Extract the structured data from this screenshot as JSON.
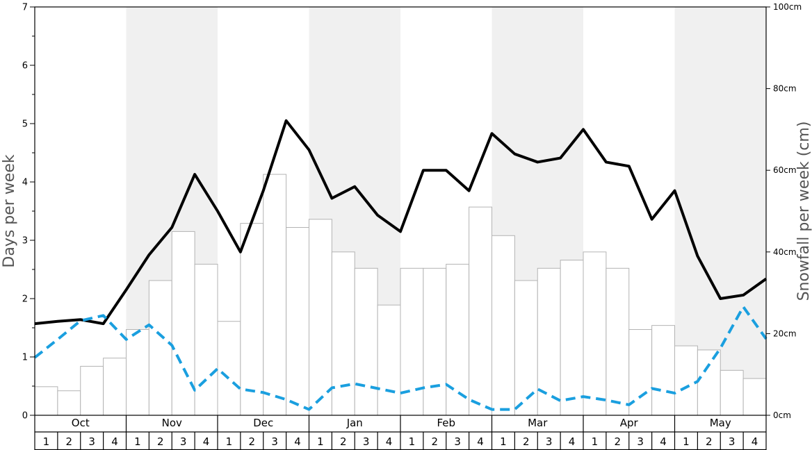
{
  "chart_data": {
    "type": "bar",
    "title": "",
    "ylabel_left": "Days per week",
    "ylabel_right": "Snowfall per week (cm)",
    "ylim_left": [
      0,
      7
    ],
    "ylim_right": [
      0,
      100
    ],
    "left_ticks": [
      0,
      1,
      2,
      3,
      4,
      5,
      6,
      7
    ],
    "right_ticks": [
      "0cm",
      "20cm",
      "40cm",
      "60cm",
      "80cm",
      "100cm"
    ],
    "months": [
      "Oct",
      "Nov",
      "Dec",
      "Jan",
      "Feb",
      "Mar",
      "Apr",
      "May"
    ],
    "week_labels": [
      "1",
      "2",
      "3",
      "4"
    ],
    "shaded_months": [
      "Nov",
      "Jan",
      "Mar",
      "May"
    ],
    "colors": {
      "bar_fill": "#ffffff",
      "bar_stroke": "#b3b3b3",
      "shade": "#f0f0f0",
      "solid_line": "#000000",
      "dashed_line": "#1a9fdf"
    },
    "series": [
      {
        "kind": "bar",
        "axis": "right",
        "values": [
          7,
          6,
          12,
          14,
          21,
          33,
          45,
          37,
          23,
          47,
          59,
          46,
          48,
          40,
          36,
          27,
          36,
          36,
          37,
          51,
          44,
          33,
          36,
          38,
          40,
          36,
          21,
          22,
          17,
          16,
          11,
          9
        ]
      },
      {
        "kind": "line",
        "style": "solid",
        "axis": "left",
        "values": [
          1.57,
          1.61,
          1.64,
          1.57,
          2.15,
          2.75,
          3.22,
          4.13,
          3.5,
          2.8,
          3.85,
          5.05,
          4.55,
          3.72,
          3.92,
          3.43,
          3.15,
          4.2,
          4.2,
          3.85,
          4.83,
          4.48,
          4.34,
          4.41,
          4.9,
          4.34,
          4.27,
          3.36,
          3.85,
          2.73,
          2.0,
          2.06,
          2.34
        ]
      },
      {
        "kind": "line",
        "style": "dashed",
        "axis": "left",
        "values": [
          0.99,
          1.3,
          1.62,
          1.71,
          1.3,
          1.55,
          1.2,
          0.43,
          0.8,
          0.45,
          0.39,
          0.27,
          0.1,
          0.47,
          0.54,
          0.46,
          0.38,
          0.47,
          0.53,
          0.27,
          0.1,
          0.1,
          0.45,
          0.25,
          0.32,
          0.26,
          0.18,
          0.46,
          0.38,
          0.58,
          1.15,
          1.86,
          1.31
        ]
      }
    ]
  }
}
